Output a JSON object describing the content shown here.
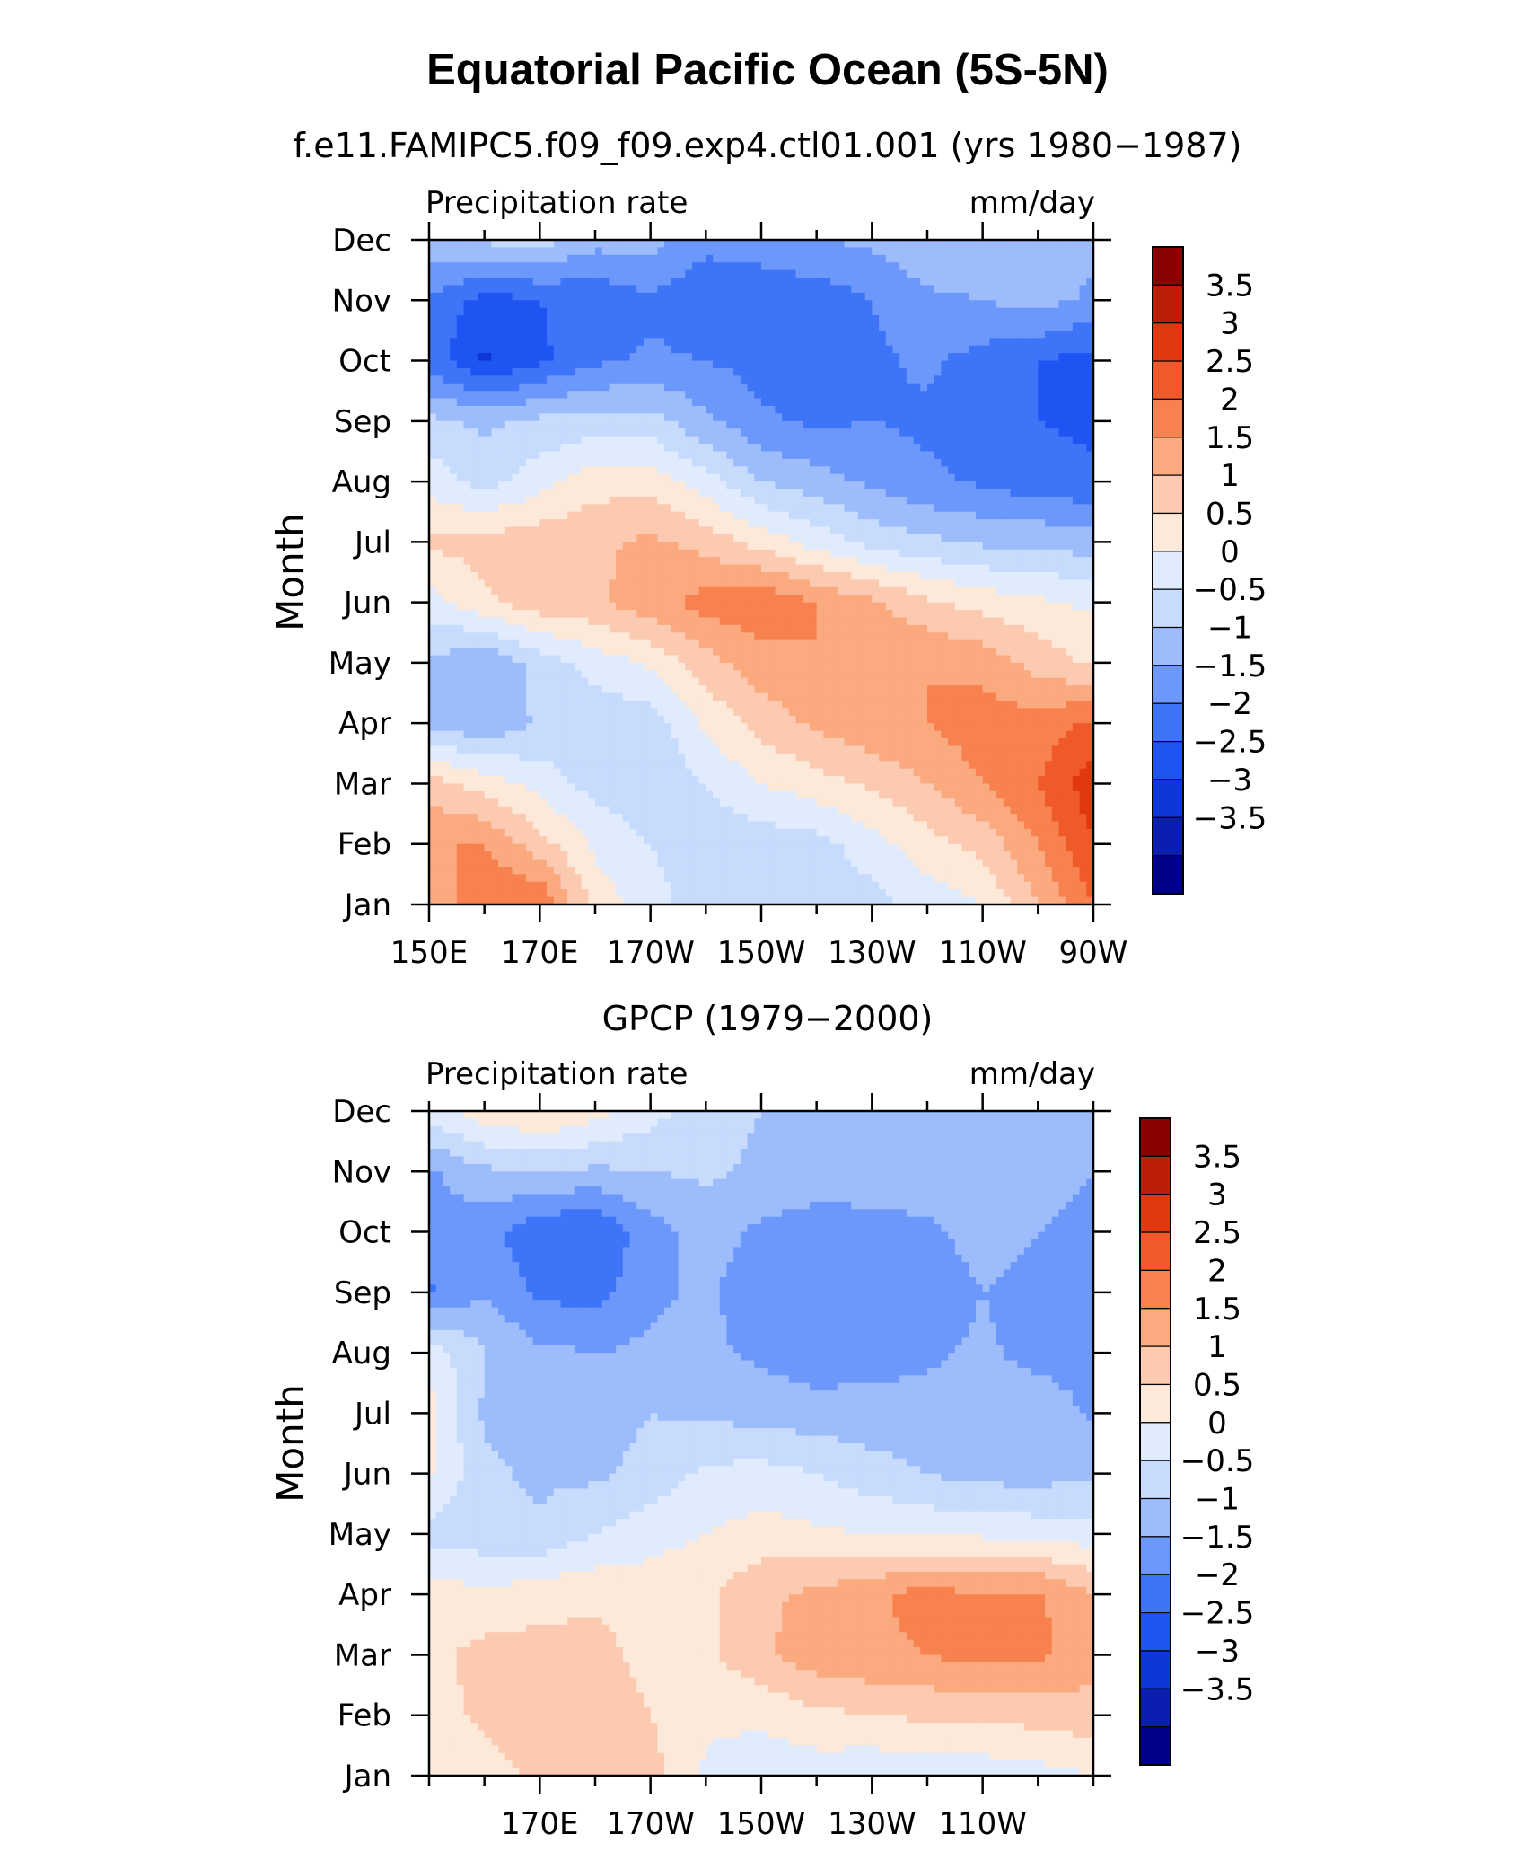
{
  "figure": {
    "title": "Equatorial Pacific Ocean (5S-5N)"
  },
  "colors": {
    "levels": [
      -3.5,
      -3,
      -2.5,
      -2,
      -1.5,
      -1,
      -0.5,
      0,
      0.5,
      1,
      1.5,
      2,
      2.5,
      3,
      3.5
    ],
    "fills": [
      "#00008b",
      "#0a1fb0",
      "#0f37d8",
      "#1e55f2",
      "#3d74f8",
      "#6c98fb",
      "#9cbcfc",
      "#c7dbfd",
      "#e0ecfe",
      "#fde9d9",
      "#fccab0",
      "#fba97f",
      "#f7824f",
      "#f05a2a",
      "#e0380f",
      "#bd1f06",
      "#8b0000"
    ]
  },
  "chart_data": [
    {
      "type": "heatmap",
      "id": "model",
      "title": "f.e11.FAMIPC5.f09_f09.exp4.ctl01.001 (yrs 1980−1987)",
      "left_label": "Precipitation rate",
      "right_label": "mm/day",
      "ylabel": "Month",
      "xlabel": "",
      "x": [
        150,
        160,
        170,
        180,
        190,
        200,
        210,
        220,
        230,
        240,
        250,
        260,
        270
      ],
      "xlim": [
        150,
        270
      ],
      "x_tick_values": [
        150,
        170,
        190,
        210,
        230,
        250,
        270
      ],
      "x_tick_labels": [
        "150E",
        "170E",
        "170W",
        "150W",
        "130W",
        "110W",
        "90W"
      ],
      "y_tick_labels": [
        "Jan",
        "Feb",
        "Mar",
        "Apr",
        "May",
        "Jun",
        "Jul",
        "Aug",
        "Sep",
        "Oct",
        "Nov",
        "Dec"
      ],
      "colorbar_labels": [
        "3.5",
        "3",
        "2.5",
        "2",
        "1.5",
        "1",
        "0.5",
        "0",
        "−0.5",
        "−1",
        "−1.5",
        "−2",
        "−2.5",
        "−3",
        "−3.5"
      ],
      "values": [
        [
          1.5,
          2.5,
          2.5,
          0.8,
          0.2,
          -0.3,
          -0.3,
          -0.4,
          -0.2,
          0.2,
          0.5,
          1.5,
          2.5
        ],
        [
          2.0,
          2.0,
          1.2,
          0.4,
          0.0,
          -0.3,
          -0.3,
          -0.2,
          0.3,
          0.8,
          1.2,
          2.0,
          3.0
        ],
        [
          1.2,
          0.8,
          0.3,
          -0.2,
          -0.4,
          0.0,
          0.5,
          0.8,
          1.1,
          1.5,
          2.0,
          2.5,
          3.3
        ],
        [
          -0.6,
          -1.0,
          -0.4,
          -0.3,
          -0.3,
          0.6,
          1.2,
          1.6,
          1.9,
          2.0,
          2.3,
          2.2,
          2.6
        ],
        [
          -0.6,
          -1.0,
          -0.3,
          0.2,
          0.6,
          1.3,
          1.8,
          2.0,
          2.0,
          2.0,
          1.8,
          1.3,
          0.9
        ],
        [
          0.3,
          0.9,
          1.3,
          1.4,
          1.8,
          2.2,
          2.4,
          2.0,
          1.6,
          1.1,
          0.8,
          0.6,
          0.4
        ],
        [
          1.1,
          1.2,
          1.3,
          1.4,
          1.6,
          1.3,
          0.8,
          0.3,
          -0.2,
          -0.4,
          -0.6,
          -0.6,
          -0.8
        ],
        [
          0.3,
          -0.2,
          0.3,
          0.8,
          0.8,
          0.2,
          -0.5,
          -0.8,
          -1.1,
          -1.4,
          -1.6,
          -1.8,
          -1.9
        ],
        [
          -0.4,
          -0.6,
          -0.4,
          -0.3,
          -0.3,
          -0.9,
          -1.4,
          -1.6,
          -1.5,
          -1.6,
          -1.8,
          -2.0,
          -2.1
        ],
        [
          -1.7,
          -2.6,
          -2.1,
          -1.6,
          -1.4,
          -1.5,
          -1.7,
          -2.0,
          -1.6,
          -1.4,
          -1.7,
          -2.0,
          -2.2
        ],
        [
          -1.6,
          -2.2,
          -2.0,
          -1.9,
          -1.6,
          -2.0,
          -1.9,
          -1.8,
          -1.5,
          -1.1,
          -1.0,
          -0.8,
          -1.1
        ],
        [
          -0.6,
          -0.4,
          -0.3,
          -0.8,
          -0.8,
          -1.3,
          -1.2,
          -1.0,
          -0.9,
          -0.6,
          -0.6,
          -0.8,
          -0.9
        ]
      ]
    },
    {
      "type": "heatmap",
      "id": "obs",
      "title": "GPCP (1979−2000)",
      "left_label": "Precipitation rate",
      "right_label": "mm/day",
      "ylabel": "Month",
      "xlabel": "",
      "x": [
        150,
        160,
        170,
        180,
        190,
        200,
        210,
        220,
        230,
        240,
        250,
        260,
        270
      ],
      "xlim": [
        150,
        270
      ],
      "x_tick_values": [
        170,
        190,
        210,
        230,
        250
      ],
      "x_tick_labels": [
        "170E",
        "170W",
        "150W",
        "130W",
        "110W"
      ],
      "y_tick_labels": [
        "Jan",
        "Feb",
        "Mar",
        "Apr",
        "May",
        "Jun",
        "Jul",
        "Aug",
        "Sep",
        "Oct",
        "Nov",
        "Dec"
      ],
      "colorbar_labels": [
        "3.5",
        "3",
        "2.5",
        "2",
        "1.5",
        "1",
        "0.5",
        "0",
        "−0.5",
        "−1",
        "−1.5",
        "−2",
        "−2.5",
        "−3",
        "−3.5"
      ],
      "values": [
        [
          0.6,
          0.8,
          1.1,
          1.4,
          1.2,
          0.4,
          0.2,
          0.2,
          0.1,
          0.1,
          0.2,
          0.3,
          0.5
        ],
        [
          0.8,
          1.1,
          1.3,
          1.4,
          1.0,
          0.6,
          0.6,
          0.9,
          1.0,
          1.1,
          1.1,
          1.2,
          1.3
        ],
        [
          0.8,
          1.2,
          1.2,
          1.2,
          0.8,
          0.9,
          1.4,
          1.8,
          1.9,
          2.0,
          2.2,
          2.1,
          1.7
        ],
        [
          0.8,
          0.6,
          0.8,
          0.9,
          0.8,
          0.9,
          1.4,
          1.6,
          1.9,
          2.2,
          2.0,
          2.1,
          1.5
        ],
        [
          -0.2,
          -0.3,
          -0.4,
          0.0,
          0.3,
          0.5,
          0.7,
          0.6,
          0.5,
          0.4,
          0.4,
          0.3,
          0.2
        ],
        [
          0.6,
          -0.4,
          -0.6,
          -0.6,
          -0.3,
          0.1,
          0.2,
          0.0,
          -0.3,
          -0.5,
          -0.7,
          -0.7,
          -0.6
        ],
        [
          0.7,
          -0.6,
          -0.7,
          -0.8,
          -0.5,
          -0.6,
          -0.7,
          -0.8,
          -0.8,
          -0.8,
          -0.7,
          -0.6,
          -1.1
        ],
        [
          0.3,
          -0.5,
          -0.9,
          -1.0,
          -0.9,
          -0.9,
          -1.1,
          -1.3,
          -1.2,
          -1.1,
          -0.9,
          -1.2,
          -1.3
        ],
        [
          -1.6,
          -1.0,
          -1.6,
          -1.7,
          -1.1,
          -0.9,
          -1.3,
          -1.4,
          -1.4,
          -1.3,
          -1.0,
          -1.2,
          -1.2
        ],
        [
          -1.2,
          -1.3,
          -1.9,
          -2.0,
          -1.2,
          -0.8,
          -1.1,
          -1.2,
          -1.2,
          -1.1,
          -0.8,
          -1.0,
          -1.1
        ],
        [
          -1.1,
          -0.6,
          -0.5,
          -0.6,
          -0.5,
          -0.4,
          -0.6,
          -0.8,
          -0.7,
          -0.7,
          -0.7,
          -0.9,
          -1.0
        ],
        [
          0.3,
          0.8,
          1.1,
          0.7,
          0.2,
          -0.3,
          -0.5,
          -0.5,
          -0.6,
          -0.6,
          -0.6,
          -0.6,
          -0.5
        ]
      ]
    }
  ]
}
